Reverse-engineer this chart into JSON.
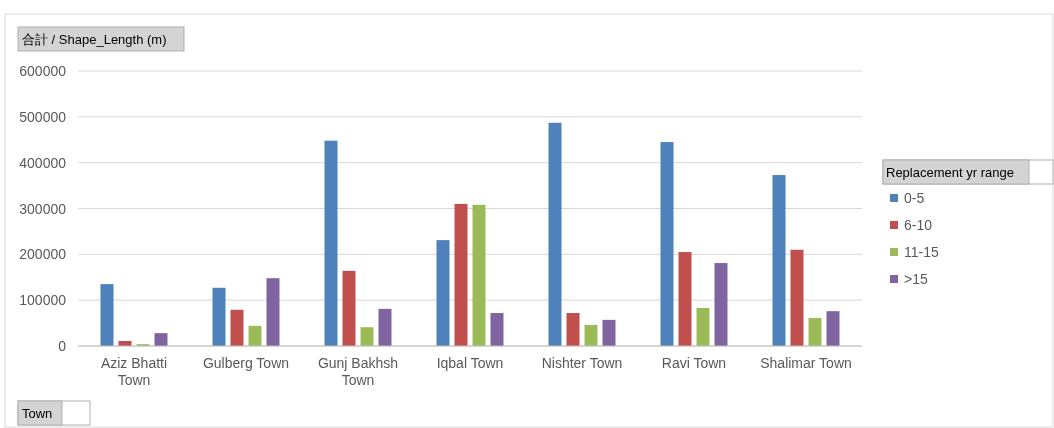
{
  "chart_data": {
    "type": "bar",
    "ylabel": "合計 / Shape_Length (m)",
    "xlabel": "Town",
    "legend_title": "Replacement yr range",
    "legend": "right",
    "grid": "y",
    "categories": [
      "Aziz Bhatti Town",
      "Gulberg Town",
      "Gunj Bakhsh Town",
      "Iqbal Town",
      "Nishter Town",
      "Ravi Town",
      "Shalimar Town"
    ],
    "ylim": [
      0,
      600000
    ],
    "yticks": [
      0,
      100000,
      200000,
      300000,
      400000,
      500000,
      600000
    ],
    "series": [
      {
        "name": "0-5",
        "color": "#4f81bd",
        "values": [
          135000,
          127000,
          448000,
          231000,
          487000,
          445000,
          373000
        ]
      },
      {
        "name": "6-10",
        "color": "#c0504d",
        "values": [
          11000,
          79000,
          164000,
          310000,
          72000,
          205000,
          210000
        ]
      },
      {
        "name": "11-15",
        "color": "#9bbb59",
        "values": [
          4000,
          44000,
          41000,
          308000,
          46000,
          83000,
          61000
        ]
      },
      {
        "name": ">15",
        "color": "#8064a2",
        "values": [
          28000,
          148000,
          81000,
          72000,
          57000,
          181000,
          76000
        ]
      }
    ]
  }
}
